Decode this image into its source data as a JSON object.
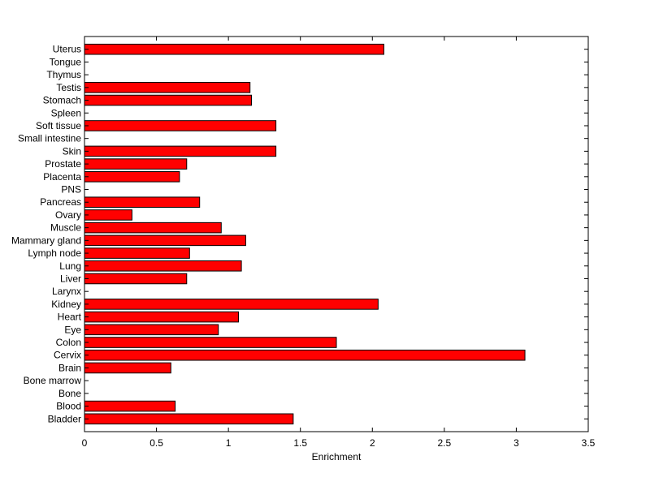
{
  "chart_data": {
    "type": "bar",
    "orientation": "horizontal",
    "title": "",
    "xlabel": "Enrichment",
    "ylabel": "",
    "xlim": [
      0,
      3.5
    ],
    "xticks": [
      0,
      0.5,
      1,
      1.5,
      2,
      2.5,
      3,
      3.5
    ],
    "xtick_labels": [
      "0",
      "0.5",
      "1",
      "1.5",
      "2",
      "2.5",
      "3",
      "3.5"
    ],
    "categories": [
      "Bladder",
      "Blood",
      "Bone",
      "Bone marrow",
      "Brain",
      "Cervix",
      "Colon",
      "Eye",
      "Heart",
      "Kidney",
      "Larynx",
      "Liver",
      "Lung",
      "Lymph node",
      "Mammary gland",
      "Muscle",
      "Ovary",
      "Pancreas",
      "PNS",
      "Placenta",
      "Prostate",
      "Skin",
      "Small intestine",
      "Soft tissue",
      "Spleen",
      "Stomach",
      "Testis",
      "Thymus",
      "Tongue",
      "Uterus"
    ],
    "values": [
      1.45,
      0.63,
      0,
      0,
      0.6,
      3.06,
      1.75,
      0.93,
      1.07,
      2.04,
      0,
      0.71,
      1.09,
      0.73,
      1.12,
      0.95,
      0.33,
      0.8,
      0,
      0.66,
      0.71,
      1.33,
      0,
      1.33,
      0,
      1.16,
      1.15,
      0,
      0,
      2.08
    ],
    "bar_color": "#ff0000",
    "bar_edge_color": "#000000",
    "grid": false,
    "legend": "none"
  }
}
